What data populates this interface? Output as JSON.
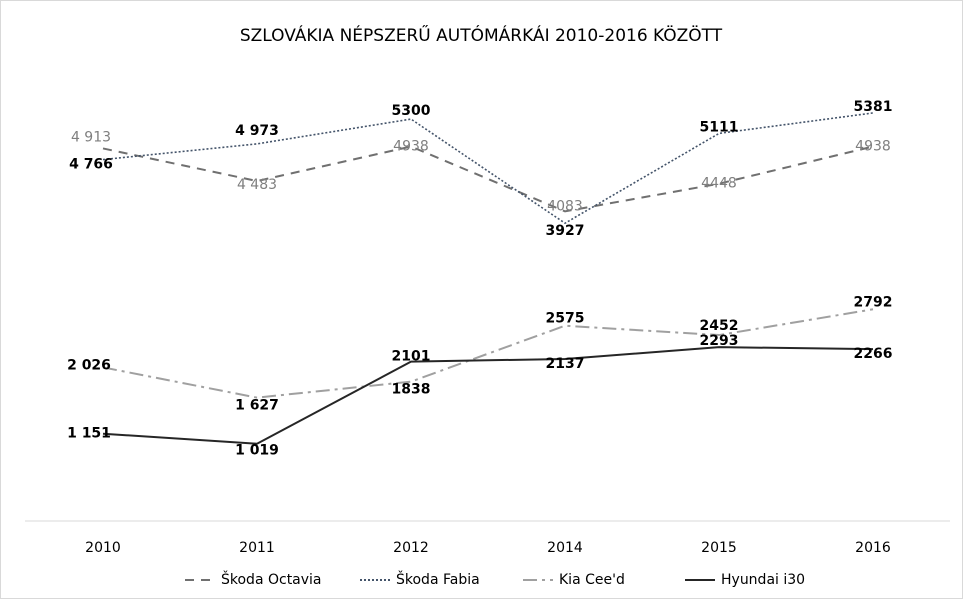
{
  "chart_data": {
    "type": "line",
    "title": "SZLOVÁKIA NÉPSZERŰ AUTÓMÁRKÁI 2010-2016 KÖZÖTT",
    "categories": [
      "2010",
      "2011",
      "2012",
      "2014",
      "2015",
      "2016"
    ],
    "ylim": [
      0,
      6000
    ],
    "series": [
      {
        "name": "Škoda Octavia",
        "color": "#707070",
        "dash": "dashed",
        "values": [
          4913,
          4483,
          4938,
          4083,
          4448,
          4938
        ],
        "value_labels": [
          "4 913",
          "4 483",
          "4938",
          "4083",
          "4448",
          "4938"
        ]
      },
      {
        "name": "Škoda Fabia",
        "color": "#44546a",
        "dash": "dotted",
        "values": [
          4766,
          4973,
          5300,
          3927,
          5111,
          5381
        ],
        "value_labels": [
          "4 766",
          "4 973",
          "5300",
          "3927",
          "5111",
          "5381"
        ]
      },
      {
        "name": "Kia Cee'd",
        "color": "#a0a0a0",
        "dash": "dashdot",
        "values": [
          2026,
          1627,
          1838,
          2575,
          2452,
          2792
        ],
        "value_labels": [
          "2 026",
          "1 627",
          "1838",
          "2575",
          "2452",
          "2792"
        ]
      },
      {
        "name": "Hyundai i30",
        "color": "#262626",
        "dash": "solid",
        "values": [
          1151,
          1019,
          2101,
          2137,
          2293,
          2266
        ],
        "value_labels": [
          "1 151",
          "1 019",
          "2101",
          "2137",
          "2293",
          "2266"
        ]
      }
    ],
    "legend": "bottom"
  }
}
